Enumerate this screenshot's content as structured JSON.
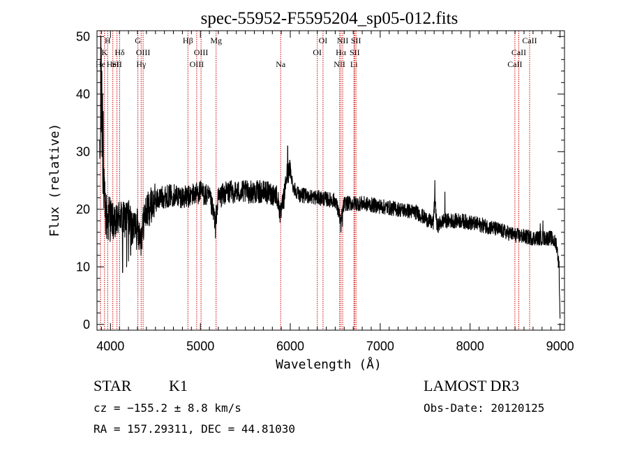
{
  "chart_data": {
    "type": "line",
    "title": "spec-55952-F5595204_sp05-012.fits",
    "xlabel": "Wavelength (Å)",
    "ylabel": "Flux (relative)",
    "xlim": [
      3850,
      9050
    ],
    "ylim": [
      -1,
      51
    ],
    "xticks": [
      4000,
      5000,
      6000,
      7000,
      8000,
      9000
    ],
    "xtick_labels": [
      "4000",
      "5000",
      "6000",
      "7000",
      "8000",
      "9000"
    ],
    "yticks": [
      0,
      10,
      20,
      30,
      40,
      50
    ],
    "ytick_labels": [
      "0",
      "10",
      "20",
      "30",
      "40",
      "50"
    ],
    "grid": false,
    "line_color": "#000000",
    "marker_line_color": "#cc0000",
    "spectrum_anchors": [
      [
        3880,
        28
      ],
      [
        3890,
        32
      ],
      [
        3900,
        36
      ],
      [
        3910,
        30
      ],
      [
        3920,
        25
      ],
      [
        3935,
        21
      ],
      [
        3950,
        19
      ],
      [
        3970,
        18
      ],
      [
        4000,
        19
      ],
      [
        4050,
        17
      ],
      [
        4100,
        19
      ],
      [
        4150,
        18
      ],
      [
        4200,
        19
      ],
      [
        4250,
        16
      ],
      [
        4280,
        18
      ],
      [
        4340,
        15
      ],
      [
        4380,
        19
      ],
      [
        4420,
        20
      ],
      [
        4470,
        21
      ],
      [
        4550,
        22
      ],
      [
        4700,
        22.5
      ],
      [
        4860,
        22
      ],
      [
        4900,
        22.5
      ],
      [
        5000,
        23
      ],
      [
        5100,
        22
      ],
      [
        5167,
        18
      ],
      [
        5200,
        22
      ],
      [
        5300,
        23
      ],
      [
        5500,
        23
      ],
      [
        5700,
        23
      ],
      [
        5850,
        22.5
      ],
      [
        5892,
        19
      ],
      [
        5930,
        22
      ],
      [
        5960,
        26
      ],
      [
        6000,
        27
      ],
      [
        6030,
        24
      ],
      [
        6100,
        22.5
      ],
      [
        6300,
        22
      ],
      [
        6500,
        21.5
      ],
      [
        6563,
        18
      ],
      [
        6600,
        21
      ],
      [
        6800,
        21
      ],
      [
        7000,
        20.5
      ],
      [
        7200,
        20
      ],
      [
        7400,
        19.5
      ],
      [
        7590,
        17.5
      ],
      [
        7608,
        22
      ],
      [
        7630,
        17
      ],
      [
        7700,
        18
      ],
      [
        7900,
        18
      ],
      [
        8200,
        17
      ],
      [
        8400,
        16
      ],
      [
        8500,
        15.5
      ],
      [
        8700,
        15
      ],
      [
        8900,
        15
      ],
      [
        8960,
        14
      ],
      [
        8990,
        10
      ],
      [
        9000,
        1
      ]
    ],
    "spike_events": [
      [
        3893,
        50
      ],
      [
        3898,
        48
      ],
      [
        3903,
        44
      ],
      [
        3912,
        40
      ],
      [
        3920,
        37
      ],
      [
        4135,
        9
      ],
      [
        4180,
        10
      ],
      [
        4200,
        11
      ],
      [
        4225,
        12
      ],
      [
        4290,
        13
      ],
      [
        5168,
        15
      ],
      [
        5971,
        31
      ],
      [
        5985,
        28
      ],
      [
        6563,
        16
      ],
      [
        6580,
        17
      ],
      [
        7608,
        25
      ],
      [
        7620,
        20
      ],
      [
        7720,
        23
      ],
      [
        8780,
        17.5
      ],
      [
        8810,
        18
      ]
    ],
    "line_markers": [
      {
        "wavelength": 3889,
        "label": "He",
        "row": 3
      },
      {
        "wavelength": 3934,
        "label": "K",
        "row": 2
      },
      {
        "wavelength": 3969,
        "label": "H",
        "row": 1
      },
      {
        "wavelength": 4026,
        "label": "HeI",
        "row": 3
      },
      {
        "wavelength": 4072,
        "label": "SII",
        "row": 3
      },
      {
        "wavelength": 4102,
        "label": "Hδ",
        "row": 2
      },
      {
        "wavelength": 4305,
        "label": "G",
        "row": 1
      },
      {
        "wavelength": 4341,
        "label": "Hγ",
        "row": 3
      },
      {
        "wavelength": 4363,
        "label": "OIII",
        "row": 2
      },
      {
        "wavelength": 4861,
        "label": "Hβ",
        "row": 1
      },
      {
        "wavelength": 4959,
        "label": "OIII",
        "row": 3
      },
      {
        "wavelength": 5007,
        "label": "OIII",
        "row": 2
      },
      {
        "wavelength": 5175,
        "label": "Mg",
        "row": 1
      },
      {
        "wavelength": 5893,
        "label": "Na",
        "row": 3
      },
      {
        "wavelength": 6300,
        "label": "OI",
        "row": 2
      },
      {
        "wavelength": 6364,
        "label": "OI",
        "row": 1
      },
      {
        "wavelength": 6548,
        "label": "NII",
        "row": 3
      },
      {
        "wavelength": 6563,
        "label": "Hα",
        "row": 2
      },
      {
        "wavelength": 6583,
        "label": "NII",
        "row": 1
      },
      {
        "wavelength": 6708,
        "label": "Li",
        "row": 3
      },
      {
        "wavelength": 6716,
        "label": "SII",
        "row": 2
      },
      {
        "wavelength": 6731,
        "label": "SII",
        "row": 1
      },
      {
        "wavelength": 8498,
        "label": "CaII",
        "row": 3
      },
      {
        "wavelength": 8542,
        "label": "CaII",
        "row": 2
      },
      {
        "wavelength": 8662,
        "label": "CaII",
        "row": 1
      }
    ]
  },
  "footer": {
    "object_class": "STAR",
    "subclass": "K1",
    "redshift_line": "cz = −155.2 ± 8.8 km/s",
    "coords_line": "RA = 157.29311, DEC =  44.81030",
    "survey": "LAMOST DR3",
    "obs_date": "Obs-Date: 20120125"
  }
}
